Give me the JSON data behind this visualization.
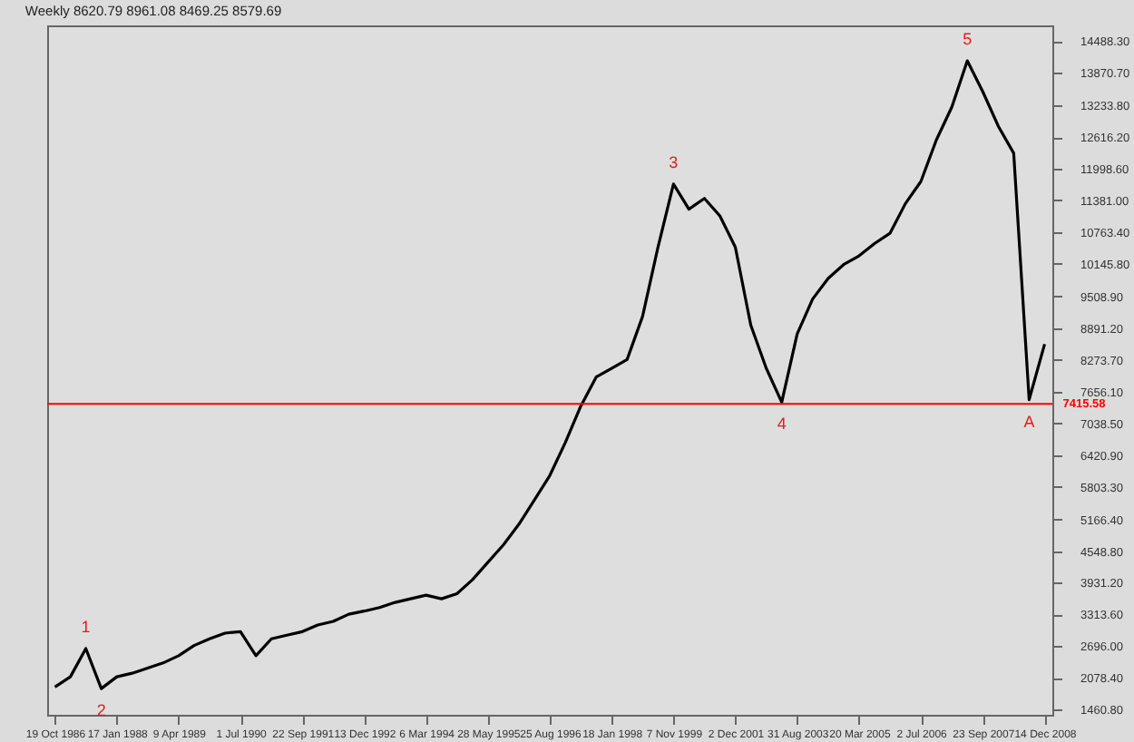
{
  "chart_data": {
    "type": "line",
    "title": "Weekly  8620.79 8961.08 8469.25 8579.69",
    "categories": [
      "19 Oct 1986",
      null,
      null,
      null,
      "17 Jan 1988",
      null,
      null,
      null,
      "9 Apr 1989",
      null,
      null,
      null,
      "1 Jul 1990",
      null,
      null,
      null,
      "22 Sep 1991",
      null,
      null,
      null,
      "13 Dec 1992",
      null,
      null,
      null,
      "6 Mar 1994",
      null,
      null,
      null,
      "28 May 1995",
      null,
      null,
      null,
      "25 Aug 1996",
      null,
      null,
      null,
      "18 Jan 1998",
      null,
      null,
      null,
      "7 Nov 1999",
      null,
      null,
      null,
      "2 Dec 2001",
      null,
      null,
      null,
      "31 Aug 2003",
      null,
      null,
      null,
      "20 Mar 2005",
      null,
      null,
      null,
      "2 Jul 2006",
      null,
      null,
      null,
      "23 Sep 2007",
      null,
      null,
      null,
      "14 Dec 2008"
    ],
    "series": [
      {
        "color": "#000000",
        "values": [
          1900,
          2100,
          2650,
          1870,
          2100,
          2170,
          2270,
          2370,
          2510,
          2710,
          2840,
          2950,
          2980,
          2510,
          2840,
          2910,
          2980,
          3110,
          3180,
          3320,
          3380,
          3450,
          3550,
          3620,
          3690,
          3620,
          3720,
          3990,
          4330,
          4670,
          5070,
          5540,
          6020,
          6660,
          7370,
          7940,
          8110,
          8280,
          9120,
          10470,
          11700,
          11210,
          11420,
          11080,
          10470,
          8950,
          8110,
          7450,
          8780,
          9460,
          9860,
          10130,
          10300,
          10540,
          10740,
          11320,
          11750,
          12560,
          13200,
          14100,
          13500,
          12830,
          12300,
          7500,
          8580
        ]
      }
    ],
    "ylim": [
      1360,
      14790
    ],
    "yticks": [
      {
        "value": 14488.3,
        "label": "14488.30"
      },
      {
        "value": 13870.7,
        "label": "13870.70"
      },
      {
        "value": 13233.8,
        "label": "13233.80"
      },
      {
        "value": 12616.2,
        "label": "12616.20"
      },
      {
        "value": 11998.6,
        "label": "11998.60"
      },
      {
        "value": 11381,
        "label": "11381.00"
      },
      {
        "value": 10763.4,
        "label": "10763.40"
      },
      {
        "value": 10145.8,
        "label": "10145.80"
      },
      {
        "value": 9508.9,
        "label": "9508.90"
      },
      {
        "value": 8891.2,
        "label": "8891.20"
      },
      {
        "value": 8273.7,
        "label": "8273.70"
      },
      {
        "value": 7656.1,
        "label": "7656.10"
      },
      {
        "value": 7038.5,
        "label": "7038.50"
      },
      {
        "value": 6420.9,
        "label": "6420.90"
      },
      {
        "value": 5803.3,
        "label": "5803.30"
      },
      {
        "value": 5166.4,
        "label": "5166.40"
      },
      {
        "value": 4548.8,
        "label": "4548.80"
      },
      {
        "value": 3931.2,
        "label": "3931.20"
      },
      {
        "value": 3313.6,
        "label": "3313.60"
      },
      {
        "value": 2696,
        "label": "2696.00"
      },
      {
        "value": 2078.4,
        "label": "2078.40"
      },
      {
        "value": 1460.8,
        "label": "1460.80"
      }
    ],
    "ref_lines": [
      {
        "axis": "y",
        "value": 7415.58,
        "label": "7415.58",
        "color": "#ff0000"
      }
    ],
    "annotations": [
      {
        "text": "1",
        "y": 2650
      },
      {
        "text": "2",
        "y": 1870
      },
      {
        "text": "3",
        "y": 11700
      },
      {
        "text": "4",
        "y": 7450
      },
      {
        "text": "5",
        "y": 14100
      },
      {
        "text": "A",
        "y": 7500
      }
    ]
  }
}
